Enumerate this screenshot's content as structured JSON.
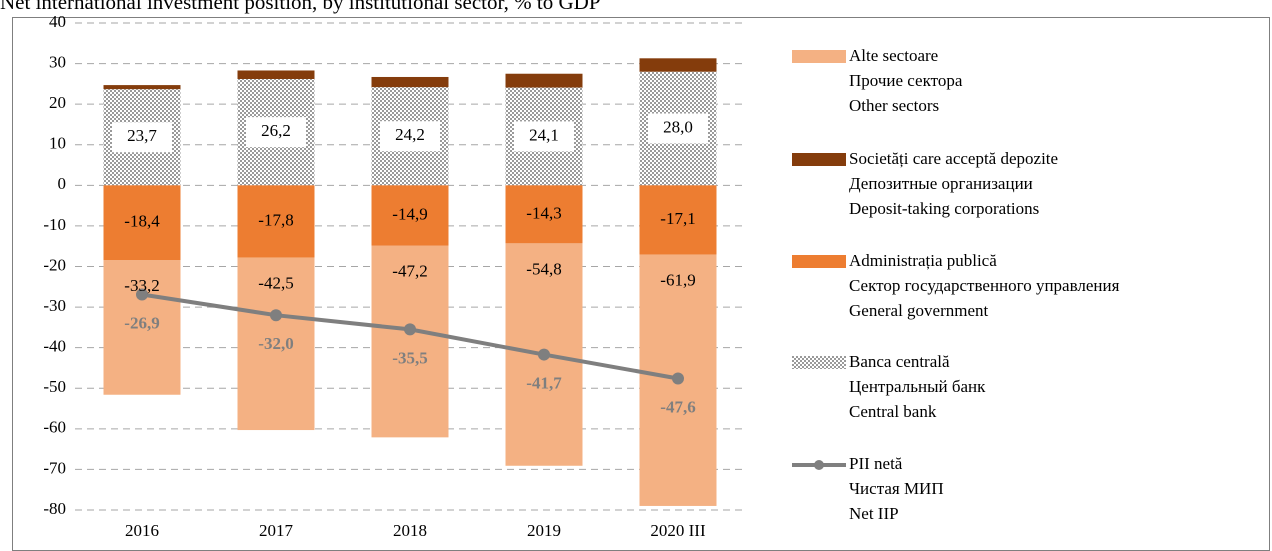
{
  "chart_data": {
    "type": "bar",
    "title": "Net international investment position, by institutional sector, % to GDP",
    "categories": [
      "2016",
      "2017",
      "2018",
      "2019",
      "2020 III"
    ],
    "ylim": [
      -80,
      40
    ],
    "yticks": [
      -80,
      -70,
      -60,
      -50,
      -40,
      -30,
      -20,
      -10,
      0,
      10,
      20,
      30,
      40
    ],
    "grid": true,
    "legend": "right",
    "series": [
      {
        "name": [
          "Alte sectoare",
          "Прочие сектора",
          "Other sectors"
        ],
        "color": "#f4b183",
        "type": "bar",
        "values": [
          -33.2,
          -42.5,
          -47.2,
          -54.8,
          -61.9
        ],
        "value_labels": [
          "-33,2",
          "-42,5",
          "-47,2",
          "-54,8",
          "-61,9"
        ]
      },
      {
        "name": [
          "Societăți care acceptă depozite",
          "Депозитные организации",
          "Deposit-taking corporations"
        ],
        "color": "#843c0c",
        "type": "bar",
        "values": [
          1.0,
          2.1,
          2.5,
          3.4,
          3.3
        ]
      },
      {
        "name": [
          "Administrația publică",
          "Сектор государственного управления",
          "General government"
        ],
        "color": "#ed7d31",
        "type": "bar",
        "values": [
          -18.4,
          -17.8,
          -14.9,
          -14.3,
          -17.1
        ],
        "value_labels": [
          "-18,4",
          "-17,8",
          "-14,9",
          "-14,3",
          "-17,1"
        ]
      },
      {
        "name": [
          "Banca centrală",
          "Центральный банк",
          "Central bank"
        ],
        "color": "pattern",
        "type": "bar",
        "values": [
          23.7,
          26.2,
          24.2,
          24.1,
          28.0
        ],
        "value_labels": [
          "23,7",
          "26,2",
          "24,2",
          "24,1",
          "28,0"
        ]
      },
      {
        "name": [
          "PII netă",
          "Чистая МИП",
          "Net IIP"
        ],
        "color": "#7f7f7f",
        "type": "line",
        "values": [
          -26.9,
          -32.0,
          -35.5,
          -41.7,
          -47.6
        ],
        "value_labels": [
          "-26,9",
          "-32,0",
          "-35,5",
          "-41,7",
          "-47,6"
        ]
      }
    ]
  }
}
